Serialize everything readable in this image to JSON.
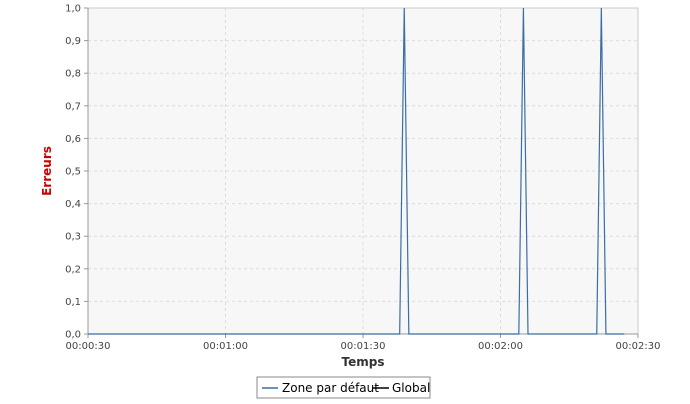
{
  "chart_data": {
    "type": "line",
    "title": "",
    "xlabel": "Temps",
    "ylabel": "Erreurs",
    "x_unit": "time (hh:mm:ss)",
    "xlim": [
      "00:00:30",
      "00:02:30"
    ],
    "ylim": [
      0.0,
      1.0
    ],
    "x_tick_labels": [
      "00:00:30",
      "00:01:00",
      "00:01:30",
      "00:02:00",
      "00:02:30"
    ],
    "y_tick_labels": [
      "0,0",
      "0,1",
      "0,2",
      "0,3",
      "0,4",
      "0,5",
      "0,6",
      "0,7",
      "0,8",
      "0,9",
      "1,0"
    ],
    "grid": true,
    "legend_position": "bottom-center",
    "series": [
      {
        "name": "Zone par défaut",
        "color": "#3a6ea5",
        "points": [
          [
            "00:00:30",
            0.0
          ],
          [
            "00:01:38",
            0.0
          ],
          [
            "00:01:39",
            1.0
          ],
          [
            "00:01:40",
            0.0
          ],
          [
            "00:02:04",
            0.0
          ],
          [
            "00:02:05",
            1.0
          ],
          [
            "00:02:06",
            0.0
          ],
          [
            "00:02:21",
            0.0
          ],
          [
            "00:02:22",
            1.0
          ],
          [
            "00:02:23",
            0.0
          ],
          [
            "00:02:27",
            0.0
          ]
        ]
      },
      {
        "name": "Global",
        "color": "#000000",
        "points": []
      }
    ]
  },
  "colors": {
    "plot_background": "#f7f7f7",
    "grid": "#dcdcdc",
    "axis_title_y": "#cc0000",
    "axis_title_x": "#333333",
    "frame": "#999999"
  }
}
